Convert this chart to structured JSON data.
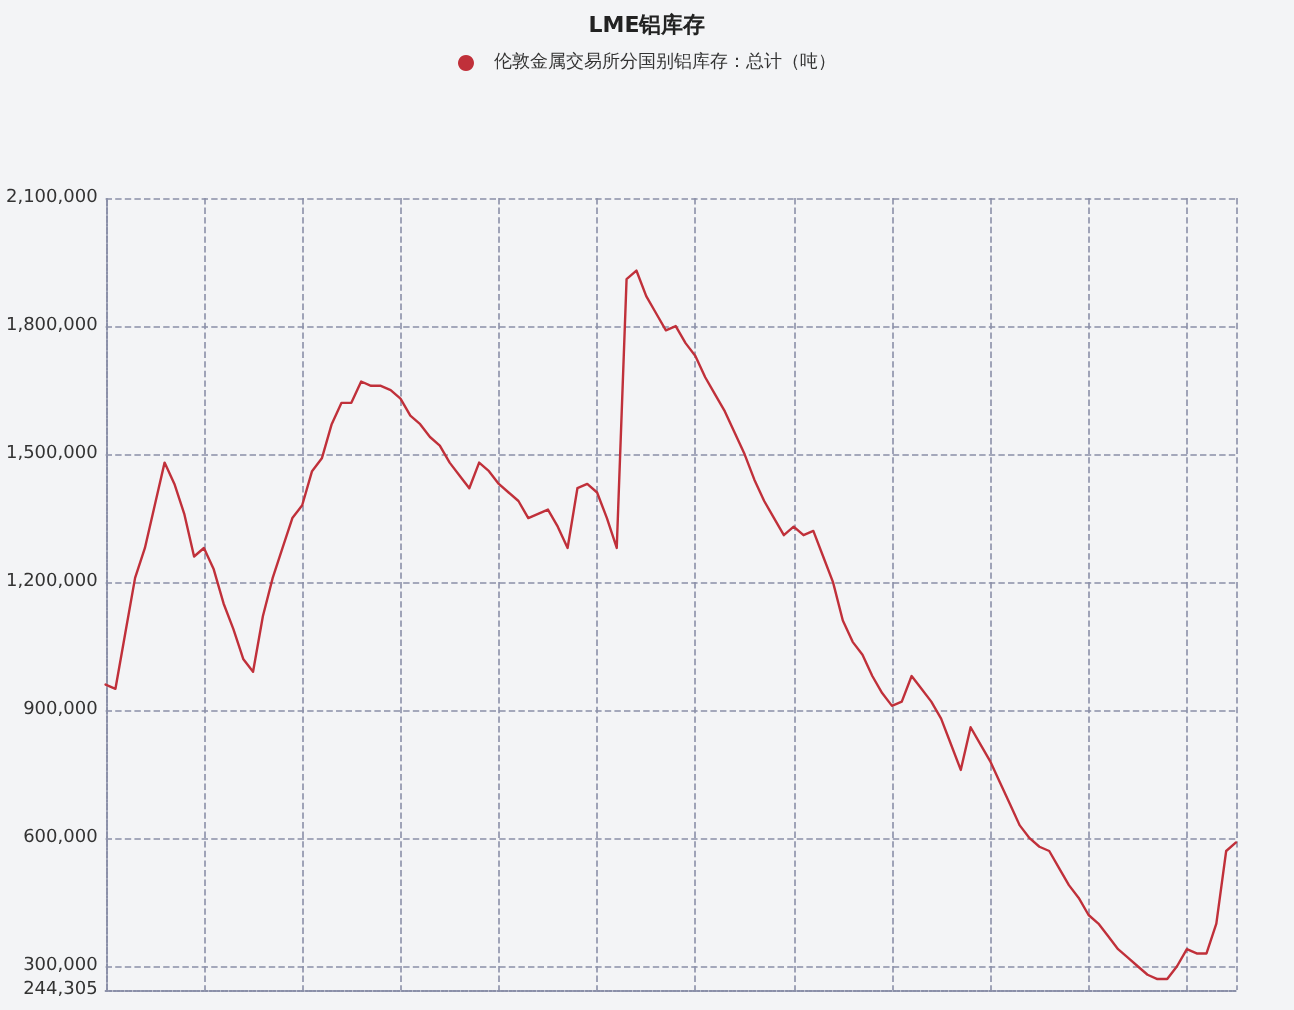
{
  "chart_data": {
    "type": "line",
    "title": "LME铝库存",
    "categories": [
      null,
      null,
      null,
      null,
      null,
      null,
      null,
      null,
      null,
      null,
      null,
      null,
      null,
      null,
      null,
      null,
      null,
      null,
      null,
      null,
      null,
      null,
      null,
      null,
      null,
      null,
      null,
      null,
      null,
      null,
      null,
      null,
      null,
      null,
      null,
      null,
      null,
      null,
      null,
      null,
      null,
      null,
      null,
      null,
      null,
      null,
      null,
      null,
      null,
      null,
      null,
      null,
      null,
      null,
      null,
      null,
      null,
      null,
      null,
      null,
      null,
      null,
      null,
      null,
      null,
      null,
      null,
      null,
      null,
      null,
      null,
      null,
      null,
      null,
      null,
      null,
      null,
      null,
      null,
      null,
      null,
      null,
      null,
      null,
      null,
      null,
      null,
      null,
      null,
      null,
      null,
      null,
      null,
      null,
      null,
      null,
      null,
      null,
      null,
      null,
      null,
      null,
      null,
      null,
      null,
      null,
      null,
      null,
      null,
      null,
      null,
      null,
      null,
      null,
      null,
      null
    ],
    "series": [
      {
        "name": "伦敦金属交易所分国别铝库存：总计（吨）",
        "color": "#c0303a",
        "values": [
          960000,
          950000,
          1080000,
          1210000,
          1280000,
          1380000,
          1480000,
          1430000,
          1360000,
          1260000,
          1280000,
          1230000,
          1150000,
          1090000,
          1020000,
          990000,
          1120000,
          1210000,
          1280000,
          1350000,
          1380000,
          1460000,
          1490000,
          1570000,
          1620000,
          1620000,
          1670000,
          1660000,
          1660000,
          1650000,
          1630000,
          1590000,
          1570000,
          1540000,
          1520000,
          1480000,
          1450000,
          1420000,
          1480000,
          1460000,
          1430000,
          1410000,
          1390000,
          1350000,
          1360000,
          1370000,
          1330000,
          1280000,
          1420000,
          1430000,
          1410000,
          1350000,
          1280000,
          1910000,
          1930000,
          1870000,
          1830000,
          1790000,
          1800000,
          1760000,
          1730000,
          1680000,
          1640000,
          1600000,
          1550000,
          1500000,
          1440000,
          1390000,
          1350000,
          1310000,
          1330000,
          1310000,
          1320000,
          1260000,
          1200000,
          1110000,
          1060000,
          1030000,
          980000,
          940000,
          910000,
          920000,
          980000,
          950000,
          920000,
          880000,
          820000,
          760000,
          860000,
          820000,
          780000,
          730000,
          680000,
          630000,
          600000,
          580000,
          570000,
          530000,
          490000,
          460000,
          420000,
          400000,
          370000,
          340000,
          320000,
          300000,
          280000,
          270000,
          270000,
          300000,
          340000,
          330000,
          330000,
          400000,
          570000,
          590000
        ]
      }
    ],
    "ylim": [
      244305,
      2100000
    ],
    "yticks": [
      {
        "value": 244305,
        "label": "244,305"
      },
      {
        "value": 300000,
        "label": "300,000"
      },
      {
        "value": 600000,
        "label": "600,000"
      },
      {
        "value": 900000,
        "label": "900,000"
      },
      {
        "value": 1200000,
        "label": "1,200,000"
      },
      {
        "value": 1500000,
        "label": "1,500,000"
      },
      {
        "value": 1800000,
        "label": "1,800,000"
      },
      {
        "value": 2100000,
        "label": "2,100,000"
      }
    ],
    "grid": true,
    "legend": "top",
    "line_style": "solid",
    "tick_labels": "y"
  }
}
